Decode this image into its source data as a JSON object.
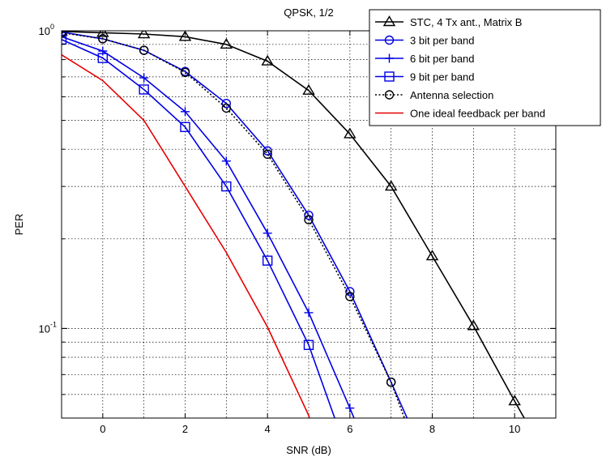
{
  "chart_data": {
    "type": "line",
    "title": "QPSK, 1/2",
    "xlabel": "SNR (dB)",
    "ylabel": "PER",
    "xlim": [
      -1,
      11
    ],
    "ylim": [
      0.05,
      1
    ],
    "yscale": "log",
    "grid": true,
    "legend_position": "top-right",
    "x_ticks": [
      {
        "value": 0,
        "label": "0"
      },
      {
        "value": 2,
        "label": "2"
      },
      {
        "value": 4,
        "label": "4"
      },
      {
        "value": 6,
        "label": "6"
      },
      {
        "value": 8,
        "label": "8"
      },
      {
        "value": 10,
        "label": "10"
      }
    ],
    "y_ticks": [
      {
        "value": 1,
        "base": "10",
        "exp": "0"
      },
      {
        "value": 0.1,
        "base": "10",
        "exp": "-1"
      }
    ],
    "series": [
      {
        "name": "STC, 4 Tx ant., Matrix B",
        "color": "#000000",
        "marker": "triangle",
        "dash": "solid",
        "x": [
          -1,
          0,
          1,
          2,
          3,
          4,
          5,
          6,
          7,
          8,
          9,
          10,
          10.5
        ],
        "y": [
          0.995,
          0.985,
          0.975,
          0.955,
          0.9,
          0.79,
          0.63,
          0.45,
          0.3,
          0.175,
          0.102,
          0.057,
          0.043
        ]
      },
      {
        "name": "3 bit per band",
        "color": "#0000e6",
        "marker": "circle",
        "dash": "solid",
        "x": [
          -1,
          0,
          1,
          2,
          3,
          4,
          5,
          6,
          7,
          7.6
        ],
        "y": [
          0.99,
          0.94,
          0.86,
          0.73,
          0.57,
          0.395,
          0.24,
          0.133,
          0.066,
          0.043
        ]
      },
      {
        "name": "6 bit per band",
        "color": "#0000e6",
        "marker": "plus",
        "dash": "solid",
        "x": [
          -1,
          0,
          1,
          2,
          3,
          4,
          5,
          6,
          6.3
        ],
        "y": [
          0.955,
          0.855,
          0.695,
          0.535,
          0.365,
          0.209,
          0.113,
          0.054,
          0.043
        ]
      },
      {
        "name": "9 bit per band",
        "color": "#0000e6",
        "marker": "square",
        "dash": "solid",
        "x": [
          -1,
          0,
          1,
          2,
          3,
          4,
          5,
          5.8
        ],
        "y": [
          0.935,
          0.81,
          0.635,
          0.475,
          0.3,
          0.169,
          0.088,
          0.043
        ]
      },
      {
        "name": "Antenna selection",
        "color": "#000000",
        "marker": "circle",
        "dash": "dotted",
        "x": [
          -1,
          0,
          1,
          2,
          3,
          4,
          5,
          6,
          7,
          7.5
        ],
        "y": [
          0.985,
          0.94,
          0.86,
          0.725,
          0.55,
          0.385,
          0.232,
          0.128,
          0.066,
          0.043
        ]
      },
      {
        "name": "One ideal feedback per band",
        "color": "#e60000",
        "marker": "none",
        "dash": "solid",
        "x": [
          -1,
          0,
          1,
          2,
          3,
          4,
          5,
          5.15
        ],
        "y": [
          0.83,
          0.68,
          0.5,
          0.3,
          0.18,
          0.101,
          0.051,
          0.043
        ]
      }
    ]
  }
}
